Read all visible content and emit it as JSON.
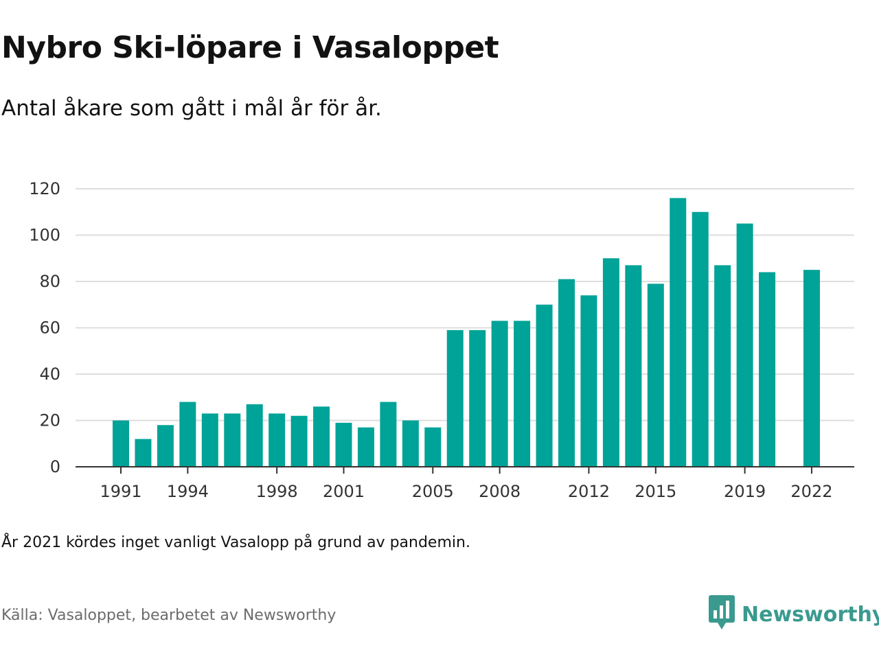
{
  "title": "Nybro Ski-löpare i Vasaloppet",
  "subtitle": "Antal åkare som gått i mål år för år.",
  "note": "År 2021 kördes inget vanligt Vasalopp på grund av pandemin.",
  "source": "Källa: Vasaloppet, bearbetet av Newsworthy",
  "brand": {
    "name": "Newsworthy",
    "icon": "chart-speech-bubble-icon",
    "color": "#3a9a8f"
  },
  "colors": {
    "bar": "#00a397",
    "grid": "#dedede",
    "axis": "#333333"
  },
  "chart_data": {
    "type": "bar",
    "title": "Nybro Ski-löpare i Vasaloppet",
    "xlabel": "",
    "ylabel": "",
    "ylim": [
      0,
      120
    ],
    "yticks": [
      0,
      20,
      40,
      60,
      80,
      100,
      120
    ],
    "xtick_labels": [
      "1991",
      "1994",
      "1998",
      "2001",
      "2005",
      "2008",
      "2012",
      "2015",
      "2019",
      "2022"
    ],
    "grid": true,
    "categories": [
      1991,
      1992,
      1993,
      1994,
      1995,
      1996,
      1997,
      1998,
      1999,
      2000,
      2001,
      2002,
      2003,
      2004,
      2005,
      2006,
      2007,
      2008,
      2009,
      2010,
      2011,
      2012,
      2013,
      2014,
      2015,
      2016,
      2017,
      2018,
      2019,
      2020,
      2021,
      2022
    ],
    "values": [
      20,
      12,
      18,
      28,
      23,
      23,
      27,
      23,
      22,
      26,
      19,
      17,
      28,
      20,
      17,
      59,
      59,
      63,
      63,
      70,
      81,
      74,
      90,
      87,
      79,
      116,
      110,
      87,
      105,
      84,
      null,
      85
    ]
  }
}
